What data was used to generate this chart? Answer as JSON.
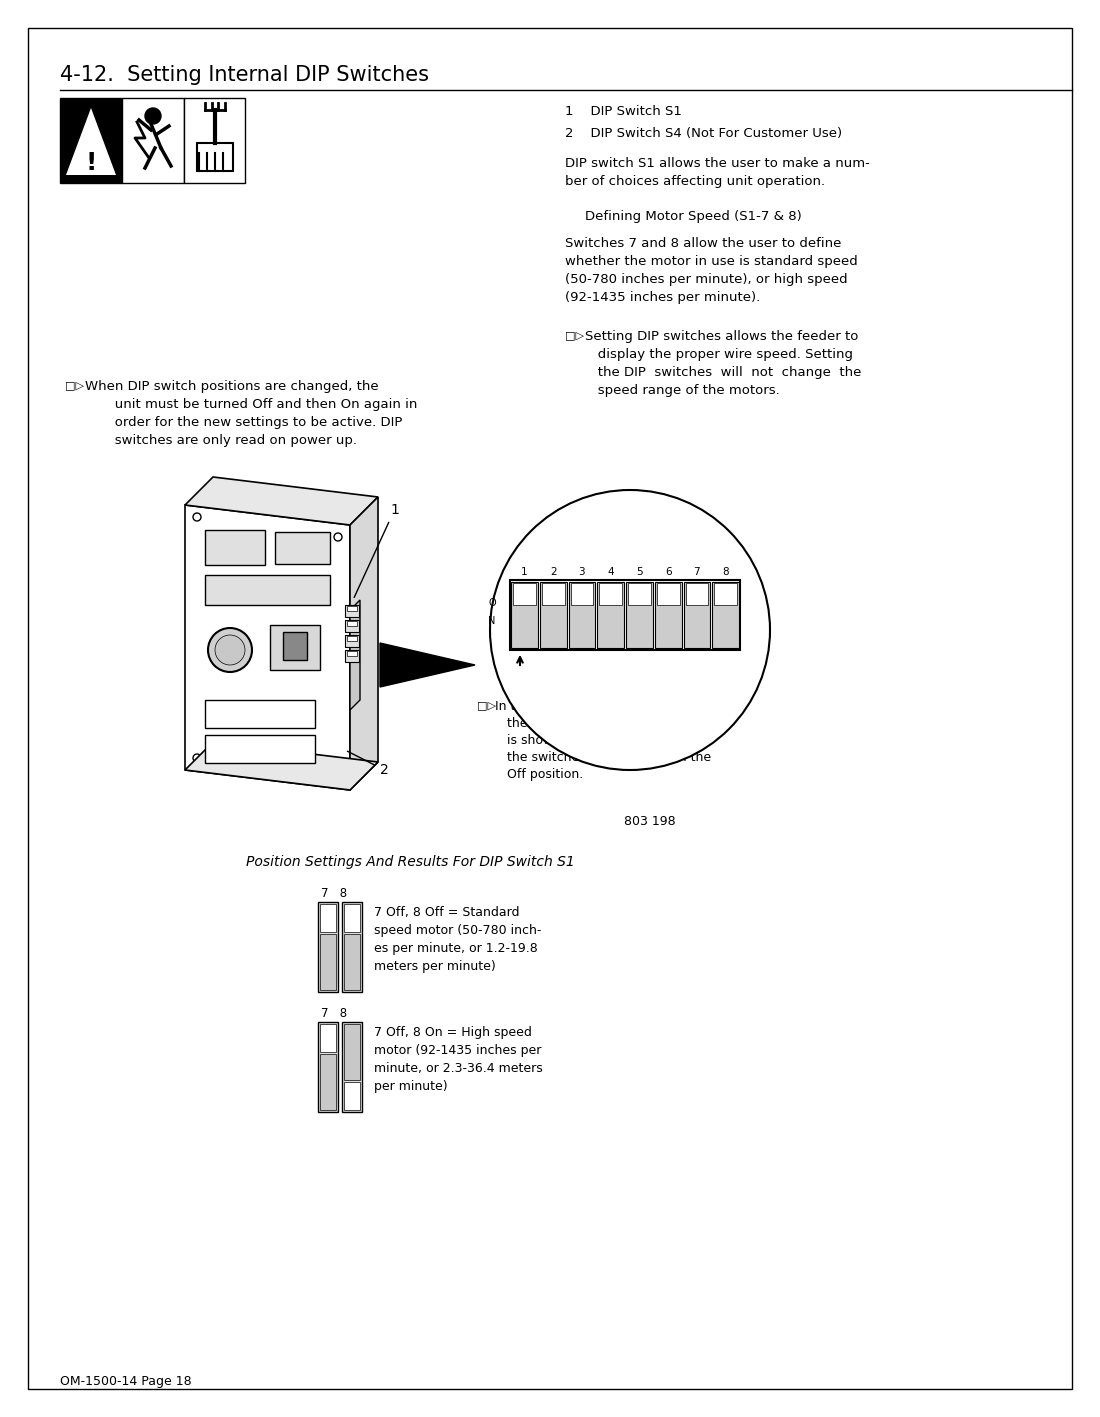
{
  "title": "4-12.  Setting Internal DIP Switches",
  "bg_color": "#ffffff",
  "border_color": "#000000",
  "text_color": "#000000",
  "page_label": "OM-1500-14 Page 18",
  "item1": "1    DIP Switch S1",
  "item2": "2    DIP Switch S4 (Not For Customer Use)",
  "body1": "DIP switch S1 allows the user to make a num-\nber of choices affecting unit operation.",
  "subhead": "    Defining Motor Speed (S1-7 & 8)",
  "body2": "Switches 7 and 8 allow the user to define\nwhether the motor in use is standard speed\n(50-780 inches per minute), or high speed\n(92-1435 inches per minute).",
  "note1_line1": "□▷  Setting DIP switches allows the feeder to",
  "note1_rest": "   display the proper wire speed. Setting\n   the DIP  switches  will  not  change  the\n   speed range of the motors.",
  "warn_line1": "□▷  When DIP switch positions are changed, the",
  "warn_rest": "       unit must be turned Off and then On again in\n       order for the new settings to be active. DIP\n       switches are only read on power up.",
  "dip_note_line1": "□▷  In the DIP switch S1 illustrations,",
  "dip_note_rest": "       the elevated slider on each switch\n       is shown in white. For example,\n       the switches above are all in the\n       Off position.",
  "fig_number": "803 198",
  "table_title": "Position Settings And Results For DIP Switch S1",
  "sw1_text": "7 Off, 8 Off = Standard\nspeed motor (50-780 inch-\nes per minute, or 1.2-19.8\nmeters per minute)",
  "sw2_text": "7 Off, 8 On = High speed\nmotor (92-1435 inches per\nminute, or 2.3-36.4 meters\nper minute)"
}
